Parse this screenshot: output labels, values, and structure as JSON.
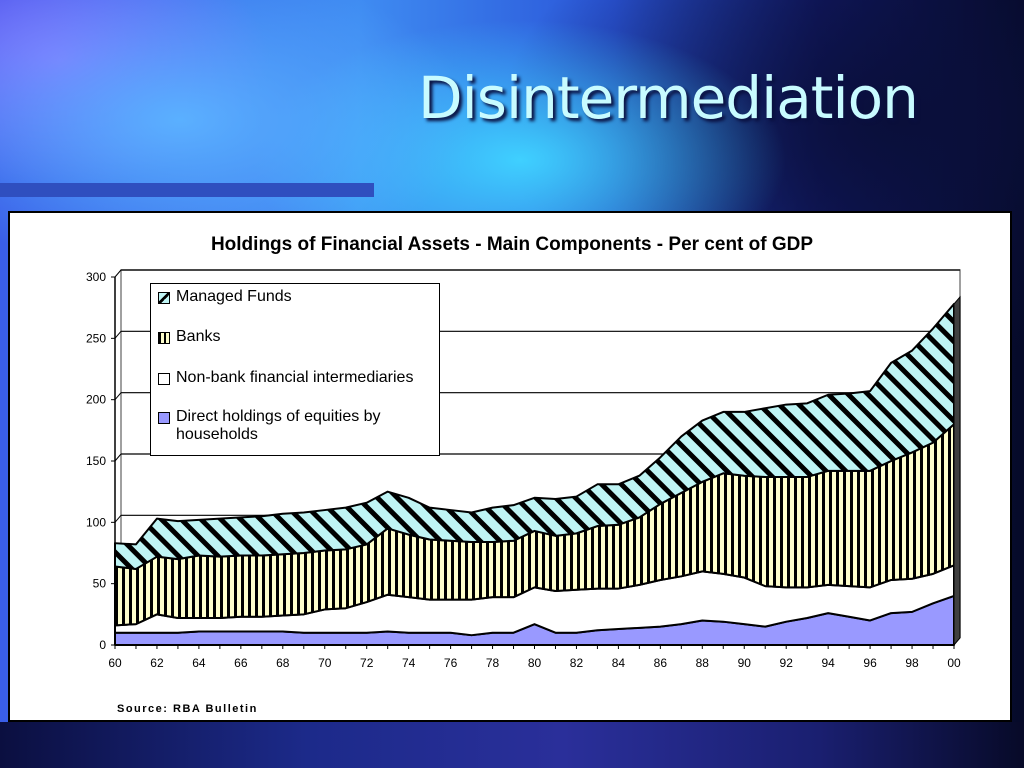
{
  "slide": {
    "title": "Disintermediation",
    "colors": {
      "title": "#c8fbff",
      "accent_bar": "#2f4fbf"
    }
  },
  "chart": {
    "title": "Holdings of Financial Assets - Main Components - Per cent of GDP",
    "source": "Source: RBA Bulletin",
    "y_ticks": [
      "0",
      "50",
      "100",
      "150",
      "200",
      "250",
      "300"
    ],
    "x_ticks": [
      "60",
      "62",
      "64",
      "66",
      "68",
      "70",
      "72",
      "74",
      "76",
      "78",
      "80",
      "82",
      "84",
      "86",
      "88",
      "90",
      "92",
      "94",
      "96",
      "98",
      "00"
    ],
    "legend": [
      {
        "label": "Managed Funds",
        "color": "#bff4f4",
        "pattern": "diagonal-stripes"
      },
      {
        "label": "Banks",
        "color": "#ffffcc",
        "pattern": "vertical-stripes"
      },
      {
        "label": "Non-bank financial intermediaries",
        "color": "#ffffff",
        "pattern": "solid"
      },
      {
        "label": "Direct holdings of equities by",
        "label_line2": "households",
        "color": "#9999ff",
        "pattern": "solid"
      }
    ]
  },
  "chart_data": {
    "type": "area",
    "stacked": true,
    "title": "Holdings of Financial Assets - Main Components - Per cent of GDP",
    "xlabel": "",
    "ylabel": "",
    "ylim": [
      0,
      300
    ],
    "grid": true,
    "legend_position": "upper-left-inside",
    "x": [
      1960,
      1961,
      1962,
      1963,
      1964,
      1965,
      1966,
      1967,
      1968,
      1969,
      1970,
      1971,
      1972,
      1973,
      1974,
      1975,
      1976,
      1977,
      1978,
      1979,
      1980,
      1981,
      1982,
      1983,
      1984,
      1985,
      1986,
      1987,
      1988,
      1989,
      1990,
      1991,
      1992,
      1993,
      1994,
      1995,
      1996,
      1997,
      1998,
      1999,
      2000
    ],
    "series": [
      {
        "name": "Direct holdings of equities by households",
        "values": [
          10,
          10,
          10,
          10,
          11,
          11,
          11,
          11,
          11,
          10,
          10,
          10,
          10,
          11,
          10,
          10,
          10,
          8,
          10,
          10,
          17,
          10,
          10,
          12,
          13,
          14,
          15,
          17,
          20,
          19,
          17,
          15,
          19,
          22,
          26,
          23,
          20,
          26,
          27,
          34,
          40
        ]
      },
      {
        "name": "Non-bank financial intermediaries",
        "values": [
          6,
          7,
          15,
          12,
          11,
          11,
          12,
          12,
          13,
          15,
          19,
          20,
          25,
          30,
          29,
          27,
          27,
          29,
          29,
          29,
          30,
          34,
          35,
          34,
          33,
          35,
          38,
          39,
          40,
          39,
          38,
          33,
          28,
          25,
          23,
          25,
          27,
          27,
          27,
          24,
          25
        ]
      },
      {
        "name": "Banks",
        "values": [
          48,
          45,
          47,
          48,
          51,
          50,
          50,
          50,
          50,
          50,
          48,
          48,
          47,
          54,
          51,
          49,
          48,
          47,
          45,
          46,
          46,
          45,
          46,
          51,
          52,
          55,
          62,
          68,
          73,
          82,
          83,
          89,
          90,
          90,
          93,
          94,
          95,
          97,
          103,
          107,
          115
        ]
      },
      {
        "name": "Managed Funds",
        "values": [
          19,
          20,
          31,
          31,
          29,
          31,
          31,
          32,
          33,
          33,
          33,
          34,
          34,
          30,
          30,
          26,
          25,
          24,
          28,
          29,
          27,
          30,
          30,
          34,
          33,
          34,
          38,
          46,
          50,
          50,
          52,
          56,
          59,
          60,
          62,
          63,
          65,
          80,
          83,
          93,
          98
        ]
      }
    ],
    "source": "RBA Bulletin"
  }
}
